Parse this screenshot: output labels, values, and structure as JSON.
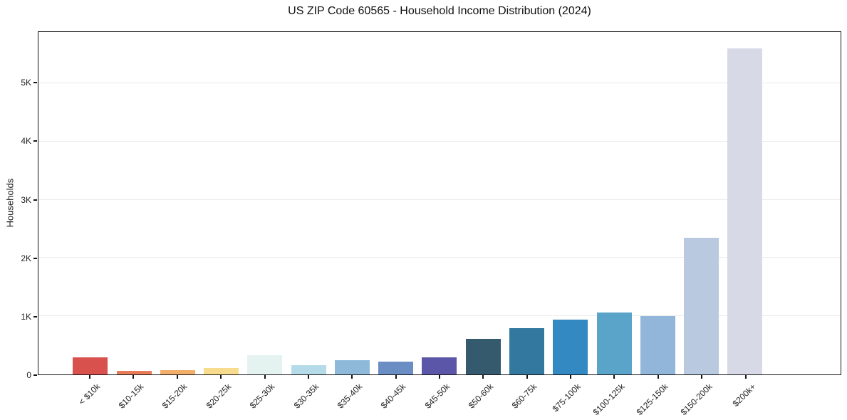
{
  "chart_data": {
    "type": "bar",
    "title": "US ZIP Code 60565 - Household Income Distribution (2024)",
    "xlabel": "",
    "ylabel": "Households",
    "ylim": [
      0,
      5880
    ],
    "grid": "horizontal-light",
    "legend": "none",
    "frame": "full-box",
    "background_color": "#ffffff",
    "axis_color": "#141414",
    "grid_color": "#ebebeb",
    "yticks": [
      {
        "value": 0,
        "label": "0"
      },
      {
        "value": 1000,
        "label": "1K"
      },
      {
        "value": 2000,
        "label": "2K"
      },
      {
        "value": 3000,
        "label": "3K"
      },
      {
        "value": 4000,
        "label": "4K"
      },
      {
        "value": 5000,
        "label": "5K"
      }
    ],
    "x_tick_rotation_deg": 45,
    "categories": [
      "< $10k",
      "$10-15k",
      "$15-20k",
      "$20-25k",
      "$25-30k",
      "$30-35k",
      "$35-40k",
      "$40-45k",
      "$45-50k",
      "$50-60k",
      "$60-75k",
      "$75-100k",
      "$100-125k",
      "$125-150k",
      "$150-200k",
      "$200k+"
    ],
    "values": [
      290,
      65,
      70,
      115,
      330,
      155,
      250,
      225,
      290,
      610,
      790,
      945,
      1060,
      1005,
      2350,
      5600
    ],
    "bar_colors": [
      "#d8514d",
      "#e87b58",
      "#f3ae6a",
      "#f8dc8d",
      "#e4f3f0",
      "#b5dbe8",
      "#8fb9d9",
      "#6a8dc3",
      "#5b56a7",
      "#365a6d",
      "#33789f",
      "#3389c1",
      "#5ba4c9",
      "#91b6d9",
      "#b9c9df",
      "#d7dae6"
    ]
  }
}
